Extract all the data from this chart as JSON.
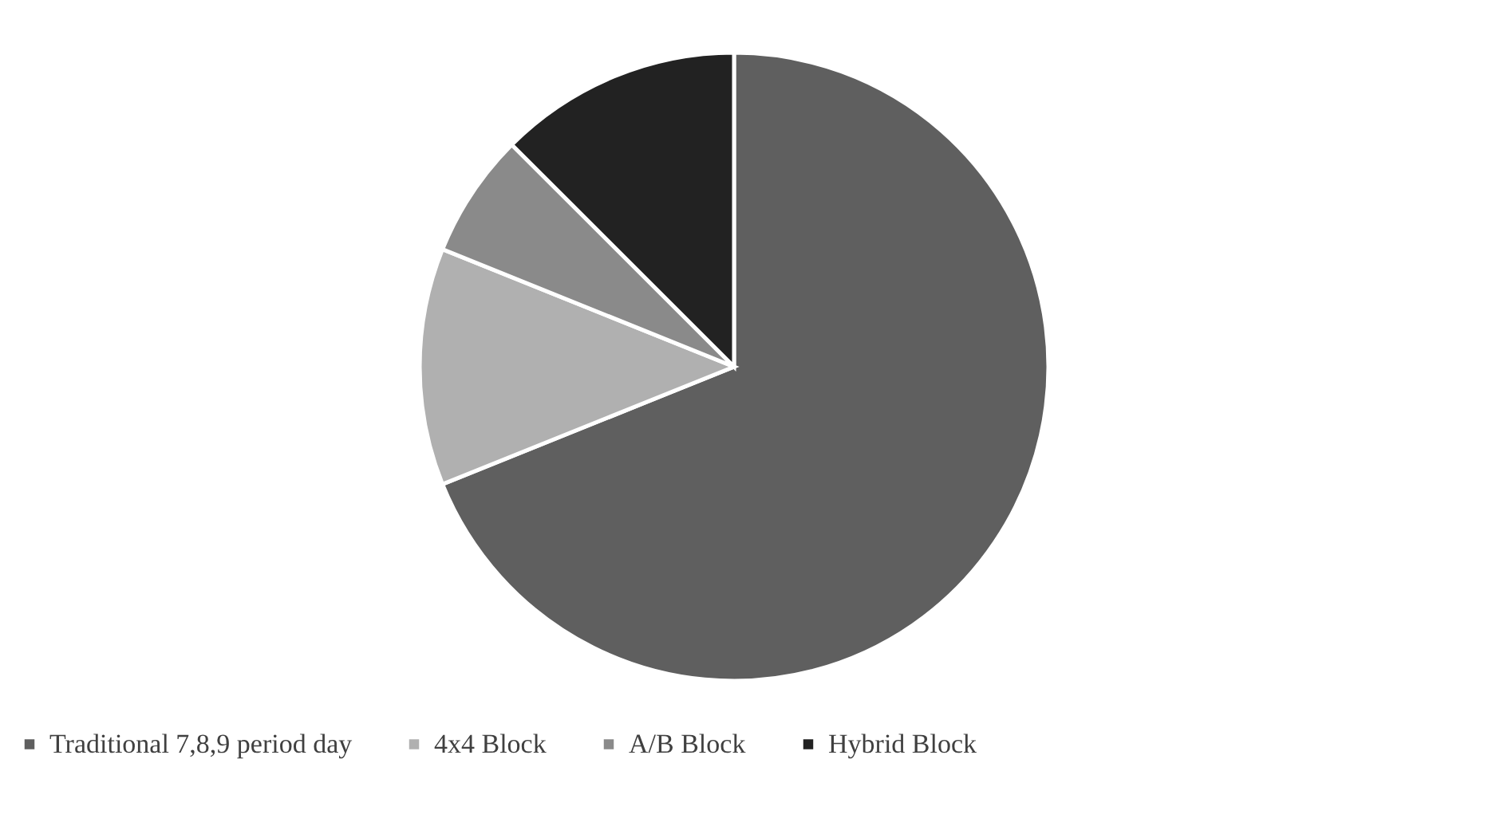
{
  "chart_data": {
    "type": "pie",
    "categories": [
      "Traditional 7,8,9 period day",
      "4x4 Block",
      "A/B Block",
      "Hybrid Block"
    ],
    "values": [
      68.9,
      12.2,
      6.4,
      12.5
    ],
    "colors": [
      "#5f5f5f",
      "#b0b0b0",
      "#8a8a8a",
      "#222222"
    ],
    "legend": "bottom"
  }
}
